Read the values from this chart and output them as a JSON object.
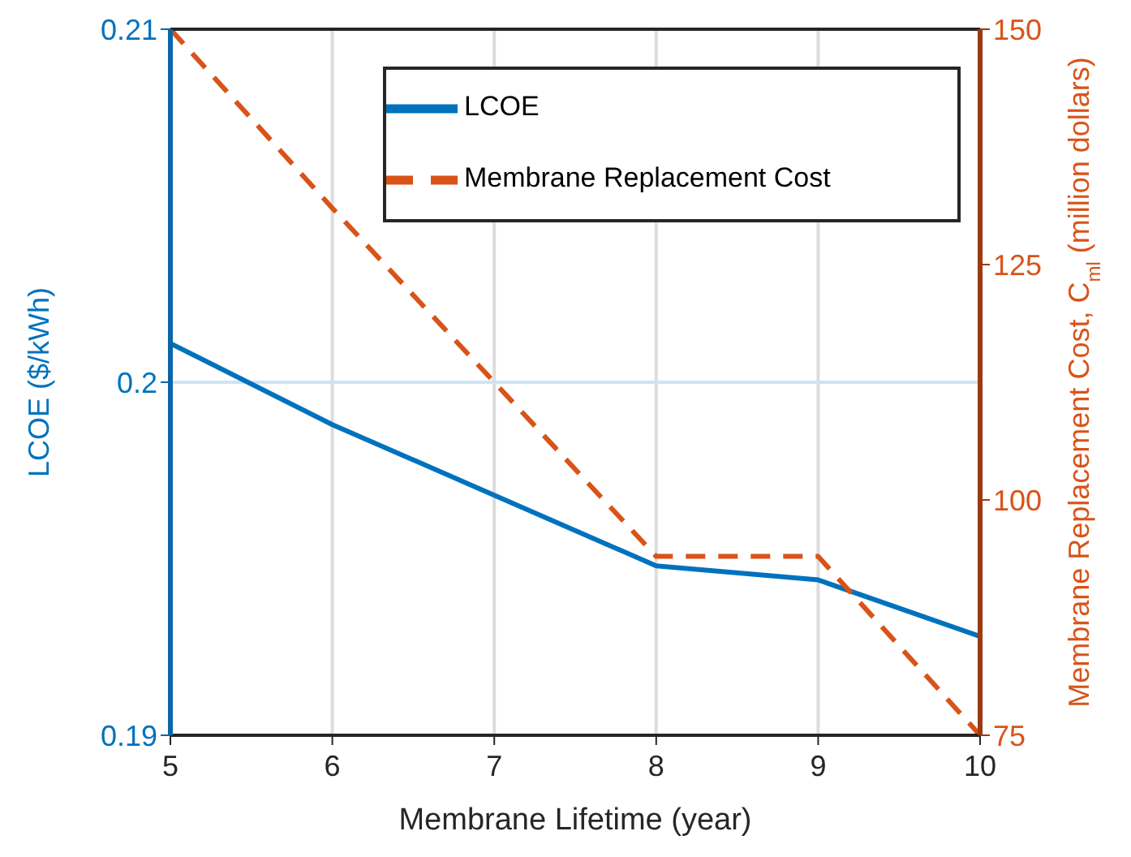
{
  "chart_data": {
    "type": "line",
    "xlabel": "Membrane Lifetime (year)",
    "ylabel": "LCOE ($/kWh)",
    "y2label": "Membrane Replacement Cost, C$_{ml}$ (million dollars)",
    "x": [
      5,
      6,
      7,
      8,
      9,
      10
    ],
    "xlim": [
      5,
      10
    ],
    "xticks": [
      5,
      6,
      7,
      8,
      9,
      10
    ],
    "ylim": [
      0.19,
      0.21
    ],
    "yticks": [
      0.19,
      0.2,
      0.21
    ],
    "y2lim": [
      75,
      150
    ],
    "y2ticks": [
      75,
      100,
      125,
      150
    ],
    "grid": "x",
    "ref_lines": [
      {
        "axis": "y",
        "value": 0.2,
        "color": "#cfe3f3"
      }
    ],
    "legend": "top right",
    "marker": "none",
    "series": [
      {
        "name": "LCOE",
        "color": "#0072bd",
        "values": [
          0.2011,
          0.1988,
          0.1968,
          0.1948,
          0.1944,
          0.1928
        ],
        "line_style": "solid"
      },
      {
        "name": "Membrane Replacement Cost",
        "color": "#d95319",
        "values": [
          150,
          131,
          112.5,
          94,
          94,
          75
        ],
        "axis": "y2",
        "line_style": "dashed"
      }
    ]
  }
}
